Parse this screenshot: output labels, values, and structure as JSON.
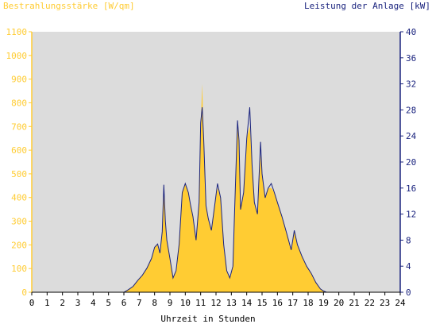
{
  "chart_data": {
    "type": "area",
    "left_axis_title": "Bestrahlungsstärke [W/qm]",
    "right_axis_title": "Leistung der Anlage [kW]",
    "xlabel": "Uhrzeit in Stunden",
    "x_ticks": [
      "0",
      "1",
      "2",
      "3",
      "4",
      "5",
      "6",
      "7",
      "8",
      "9",
      "10",
      "11",
      "12",
      "13",
      "14",
      "15",
      "16",
      "17",
      "18",
      "19",
      "20",
      "21",
      "22",
      "23",
      "24"
    ],
    "xlim": [
      0,
      24
    ],
    "ylim_left": [
      0,
      1100
    ],
    "ylim_right": [
      0,
      40
    ],
    "y_ticks_left": [
      "0",
      "100",
      "200",
      "300",
      "400",
      "500",
      "600",
      "700",
      "800",
      "900",
      "1000",
      "1100"
    ],
    "y_ticks_right": [
      "0",
      "4",
      "8",
      "12",
      "16",
      "20",
      "24",
      "28",
      "32",
      "36",
      "40"
    ],
    "grid": false,
    "colors": {
      "irradiance": "#ffcc33",
      "power": "#1a237e",
      "plot_bg": "#dcdcdc",
      "left_axis": "#ffcc33",
      "right_axis": "#1a237e"
    },
    "series": [
      {
        "name": "Bestrahlungsstärke [W/qm]",
        "axis": "left",
        "x": [
          0,
          6.0,
          6.3,
          6.6,
          6.9,
          7.2,
          7.5,
          7.8,
          8.0,
          8.2,
          8.35,
          8.5,
          8.6,
          8.7,
          8.8,
          9.0,
          9.2,
          9.4,
          9.6,
          9.8,
          10.0,
          10.2,
          10.35,
          10.5,
          10.7,
          10.9,
          11.0,
          11.1,
          11.2,
          11.35,
          11.5,
          11.7,
          11.9,
          12.1,
          12.3,
          12.5,
          12.7,
          12.9,
          13.1,
          13.2,
          13.4,
          13.5,
          13.6,
          13.8,
          14.0,
          14.2,
          14.35,
          14.5,
          14.7,
          14.9,
          15.0,
          15.2,
          15.4,
          15.6,
          15.8,
          16.0,
          16.3,
          16.6,
          16.9,
          17.1,
          17.3,
          17.6,
          17.9,
          18.2,
          18.5,
          18.8,
          19.0,
          19.2,
          24
        ],
        "y": [
          0,
          0,
          10,
          25,
          50,
          70,
          100,
          140,
          190,
          200,
          160,
          250,
          430,
          300,
          220,
          140,
          60,
          90,
          200,
          420,
          460,
          420,
          360,
          320,
          220,
          380,
          700,
          880,
          650,
          360,
          310,
          260,
          360,
          440,
          400,
          200,
          90,
          60,
          110,
          320,
          700,
          640,
          350,
          420,
          650,
          700,
          540,
          380,
          330,
          580,
          500,
          400,
          440,
          440,
          420,
          380,
          320,
          250,
          180,
          260,
          200,
          150,
          110,
          80,
          40,
          15,
          5,
          0,
          0
        ]
      },
      {
        "name": "Leistung der Anlage [kW]",
        "axis": "right",
        "x": [
          0,
          6.0,
          6.3,
          6.6,
          6.9,
          7.2,
          7.5,
          7.8,
          8.0,
          8.2,
          8.35,
          8.5,
          8.6,
          8.7,
          8.8,
          9.0,
          9.2,
          9.4,
          9.6,
          9.8,
          10.0,
          10.2,
          10.35,
          10.5,
          10.7,
          10.9,
          11.0,
          11.1,
          11.2,
          11.35,
          11.5,
          11.7,
          11.9,
          12.1,
          12.3,
          12.5,
          12.7,
          12.9,
          13.1,
          13.2,
          13.4,
          13.5,
          13.6,
          13.8,
          14.0,
          14.2,
          14.35,
          14.5,
          14.7,
          14.9,
          15.0,
          15.2,
          15.4,
          15.6,
          15.8,
          16.0,
          16.3,
          16.6,
          16.9,
          17.1,
          17.3,
          17.6,
          17.9,
          18.2,
          18.5,
          18.8,
          19.0,
          19.2,
          24
        ],
        "y": [
          0,
          0,
          0.4,
          0.9,
          1.8,
          2.6,
          3.7,
          5.2,
          6.9,
          7.4,
          6.0,
          9.3,
          16.5,
          11.0,
          8.0,
          5.2,
          2.2,
          3.3,
          7.4,
          15.3,
          16.7,
          15.3,
          13.3,
          11.6,
          8.0,
          13.8,
          26.0,
          28.4,
          23.6,
          13.3,
          11.3,
          9.5,
          13.1,
          16.7,
          14.5,
          7.3,
          3.3,
          2.2,
          4.0,
          11.6,
          26.4,
          23.3,
          12.7,
          15.3,
          23.6,
          28.4,
          19.6,
          13.8,
          12.0,
          23.1,
          18.2,
          14.5,
          16.0,
          16.7,
          15.3,
          13.8,
          11.6,
          9.1,
          6.5,
          9.5,
          7.3,
          5.5,
          4.0,
          2.9,
          1.5,
          0.5,
          0.2,
          0,
          0
        ]
      }
    ]
  }
}
